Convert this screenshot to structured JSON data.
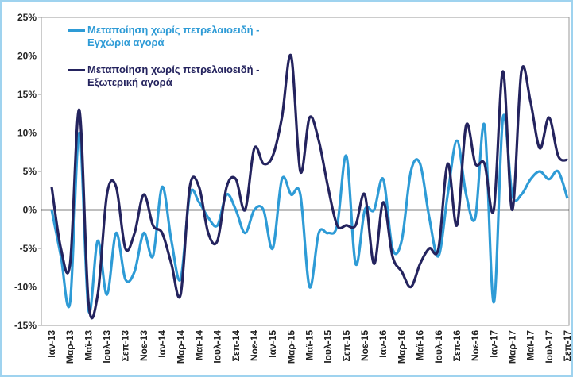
{
  "chart_data": {
    "type": "line",
    "categories": [
      "Ιαν-13",
      null,
      "Μαρ-13",
      null,
      "Μαϊ-13",
      null,
      "Ιουλ-13",
      null,
      "Σεπ-13",
      null,
      "Νοε-13",
      null,
      "Ιαν-14",
      null,
      "Μαρ-14",
      null,
      "Μαϊ-14",
      null,
      "Ιουλ-14",
      null,
      "Σεπ-14",
      null,
      "Νοε-14",
      null,
      "Ιαν-15",
      null,
      "Μαρ-15",
      null,
      "Μαϊ-15",
      null,
      "Ιουλ-15",
      null,
      "Σεπ-15",
      null,
      "Νοε-15",
      null,
      "Ιαν-16",
      null,
      "Μαρ-16",
      null,
      "Μαϊ-16",
      null,
      "Ιουλ-16",
      null,
      "Σεπ-16",
      null,
      "Νοε-16",
      null,
      "Ιαν-17",
      null,
      "Μαρ-17",
      null,
      "Μαϊ-17",
      null,
      "Ιουλ-17",
      null,
      "Σεπ-17"
    ],
    "series": [
      {
        "name": "Μεταποίηση χωρίς πετρελαιοειδή - Εγχώρια αγορά",
        "color": "#2e9bd6",
        "values": [
          0,
          -6,
          -12,
          10,
          -13,
          -4,
          -11,
          -3,
          -9,
          -8,
          -3,
          -6,
          3,
          -4,
          -9,
          2,
          1,
          -1,
          -2,
          2,
          0,
          -3,
          0,
          0,
          -5,
          4,
          2,
          2,
          -10,
          -3,
          -3,
          -2,
          7,
          -7,
          0,
          0,
          4,
          -5,
          -4,
          5,
          6,
          -1,
          -6,
          2,
          9,
          2,
          -1,
          11,
          -12,
          12,
          2,
          2,
          4,
          5,
          4,
          5,
          1.5
        ]
      },
      {
        "name": "Μεταποίηση χωρίς πετρελαιοειδή - Εξωτερική αγορά",
        "color": "#24235e",
        "values": [
          3,
          -5,
          -7,
          13,
          -12,
          -11,
          2,
          3,
          -5,
          -3,
          2,
          -2,
          -3,
          -7,
          -11,
          3,
          3,
          -3,
          -4,
          3,
          4,
          0,
          8,
          6,
          7,
          12,
          20,
          5,
          12,
          9,
          3,
          -2,
          -2,
          -2,
          2,
          -7,
          1,
          -6,
          -8,
          -10,
          -7,
          -5,
          -5,
          6,
          -2,
          11,
          6,
          6,
          0,
          18,
          0,
          18,
          14,
          8,
          12,
          7,
          6.5
        ]
      }
    ],
    "ylim": [
      -15,
      25
    ],
    "yticks": [
      {
        "value": -15,
        "label": "-15%"
      },
      {
        "value": -10,
        "label": "-10%"
      },
      {
        "value": -5,
        "label": "-5%"
      },
      {
        "value": 0,
        "label": "0%"
      },
      {
        "value": 5,
        "label": "5%"
      },
      {
        "value": 10,
        "label": "10%"
      },
      {
        "value": 15,
        "label": "15%"
      },
      {
        "value": 20,
        "label": "20%"
      },
      {
        "value": 25,
        "label": "25%"
      }
    ]
  }
}
